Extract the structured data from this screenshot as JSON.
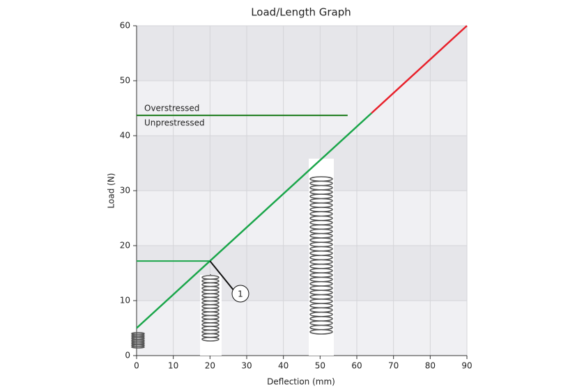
{
  "chart_data": {
    "type": "line",
    "title": "Load/Length Graph",
    "x_label": "Deflection (mm)",
    "y_label": "Load (N)",
    "xlim": [
      0,
      90
    ],
    "ylim": [
      0,
      60
    ],
    "xticks": [
      0,
      10,
      20,
      30,
      40,
      50,
      60,
      70,
      80,
      90
    ],
    "yticks": [
      0,
      10,
      20,
      30,
      40,
      50,
      60
    ],
    "grid": true,
    "series": [
      {
        "color": "#1aa64a",
        "x": [
          0,
          64
        ],
        "values": [
          5,
          44.1
        ]
      },
      {
        "color": "#e8202a",
        "x": [
          64,
          90
        ],
        "values": [
          44.1,
          60
        ]
      }
    ],
    "threshold": {
      "y": 43.7,
      "x": [
        0,
        57.5
      ],
      "color": "#1a7a1a",
      "label_above": "Overstressed",
      "label_below": "Unprestressed"
    },
    "marker": {
      "x": 20,
      "y": 17.2,
      "color": "#1aa64a",
      "label": "1"
    }
  }
}
